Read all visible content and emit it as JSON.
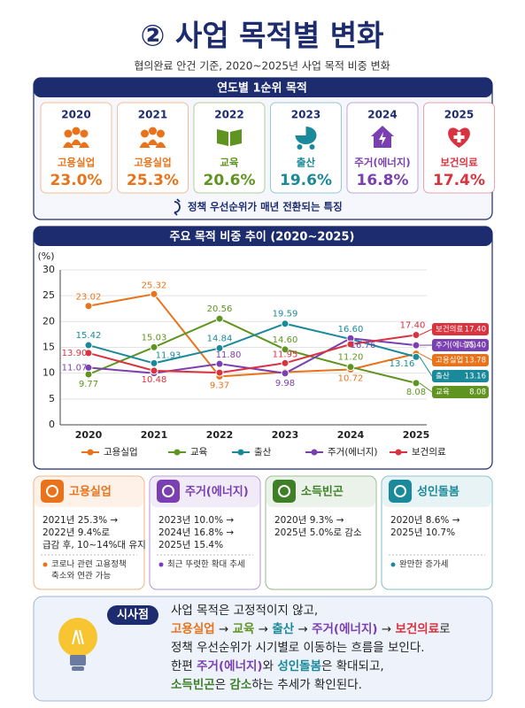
{
  "header": {
    "title": "② 사업 목적별 변화",
    "subtitle": "협의완료 안건 기준, 2020~2025년 사업 목적 비중 변화"
  },
  "top_section": {
    "title": "연도별 1순위 목적",
    "cards": [
      {
        "year": "2020",
        "label": "고용실업",
        "value": "23.0%",
        "color": "#e8731a"
      },
      {
        "year": "2021",
        "label": "고용실업",
        "value": "25.3%",
        "color": "#e8731a"
      },
      {
        "year": "2022",
        "label": "교육",
        "value": "20.6%",
        "color": "#5f9420"
      },
      {
        "year": "2023",
        "label": "출산",
        "value": "19.6%",
        "color": "#1a8a9a"
      },
      {
        "year": "2024",
        "label": "주거(에너지)",
        "value": "16.8%",
        "color": "#7a3fb0"
      },
      {
        "year": "2025",
        "label": "보건의료",
        "value": "17.4%",
        "color": "#d9333f"
      }
    ],
    "note": "정책 우선순위가 매년 전환되는 특징"
  },
  "chart_data": {
    "type": "line",
    "title": "주요 목적 비중 추이 (2020~2025)",
    "y_label": "(%)",
    "categories": [
      "2020",
      "2021",
      "2022",
      "2023",
      "2024",
      "2025"
    ],
    "ylim": [
      0,
      30
    ],
    "yticks": [
      0,
      5,
      10,
      15,
      20,
      25,
      30
    ],
    "grid": true,
    "series": [
      {
        "name": "고용실업",
        "color": "#e8731a",
        "values": [
          23.02,
          25.32,
          9.37,
          10.2,
          10.72,
          13.78
        ],
        "value_labels": [
          "23.02",
          "25.32",
          "9.37",
          null,
          "10.72",
          "13.78"
        ]
      },
      {
        "name": "교육",
        "color": "#5f9420",
        "values": [
          9.77,
          15.03,
          20.56,
          14.6,
          11.2,
          8.08
        ],
        "value_labels": [
          "9.77",
          "15.03",
          "20.56",
          "14.60",
          "11.20",
          "8.08"
        ]
      },
      {
        "name": "출산",
        "color": "#1a8a9a",
        "values": [
          15.42,
          11.93,
          14.84,
          19.59,
          16.6,
          13.16
        ],
        "value_labels": [
          "15.42",
          "11.93",
          "14.84",
          "19.59",
          "16.60",
          "13.16"
        ]
      },
      {
        "name": "주거(에너지)",
        "color": "#7a3fb0",
        "values": [
          11.07,
          10.0,
          11.8,
          9.98,
          16.76,
          15.4
        ],
        "value_labels": [
          "11.07",
          null,
          "11.80",
          "9.98",
          "16.76",
          "15.40"
        ]
      },
      {
        "name": "보건의료",
        "color": "#d9333f",
        "values": [
          13.9,
          10.48,
          10.1,
          11.95,
          15.6,
          17.4
        ],
        "value_labels": [
          "13.90",
          "10.48",
          null,
          "11.95",
          null,
          "17.40"
        ]
      }
    ]
  },
  "detail_cards": [
    {
      "title": "고용실업",
      "color": "#e8731a",
      "lines": [
        "2021년 25.3% →",
        "2022년 9.4%로",
        "급감 후, 10~14%대 유지"
      ],
      "note": [
        "코로나 관련 고용정책",
        "축소와 연관 가능"
      ]
    },
    {
      "title": "주거(에너지)",
      "color": "#7a3fb0",
      "lines": [
        "2023년 10.0% →",
        "2024년 16.8% →",
        "2025년 15.4%"
      ],
      "note": [
        "최근 뚜렷한 확대 추세"
      ]
    },
    {
      "title": "소득빈곤",
      "color": "#3f7f28",
      "lines": [
        "2020년 9.3% →",
        "2025년 5.0%로 감소"
      ],
      "note": []
    },
    {
      "title": "성인돌봄",
      "color": "#1a8a9a",
      "lines": [
        "2020년 8.6% →",
        "2025년 10.7%"
      ],
      "note": [
        "완만한 증가세"
      ]
    }
  ],
  "insight": {
    "label": "시사점",
    "lines": [
      [
        {
          "text": "사업 목적은 고정적이지 않고,"
        }
      ],
      [
        {
          "text": "고용실업",
          "color": "#e8731a"
        },
        {
          "text": " → "
        },
        {
          "text": "교육",
          "color": "#5f9420"
        },
        {
          "text": " → "
        },
        {
          "text": "출산",
          "color": "#1a8a9a"
        },
        {
          "text": " → "
        },
        {
          "text": "주거(에너지)",
          "color": "#7a3fb0"
        },
        {
          "text": " → "
        },
        {
          "text": "보건의료",
          "color": "#d9333f"
        },
        {
          "text": "로"
        }
      ],
      [
        {
          "text": "정책 우선순위가 시기별로 이동하는 흐름을 보인다."
        }
      ],
      [
        {
          "text": "한편 "
        },
        {
          "text": "주거(에너지)",
          "color": "#7a3fb0"
        },
        {
          "text": "와 "
        },
        {
          "text": "성인돌봄",
          "color": "#1a8a9a"
        },
        {
          "text": "은 확대되고,"
        }
      ],
      [
        {
          "text": "소득빈곤",
          "color": "#3f7f28"
        },
        {
          "text": "은 "
        },
        {
          "text": "감소",
          "color": "#3f7f28"
        },
        {
          "text": "하는 추세가 확인된다."
        }
      ]
    ]
  }
}
